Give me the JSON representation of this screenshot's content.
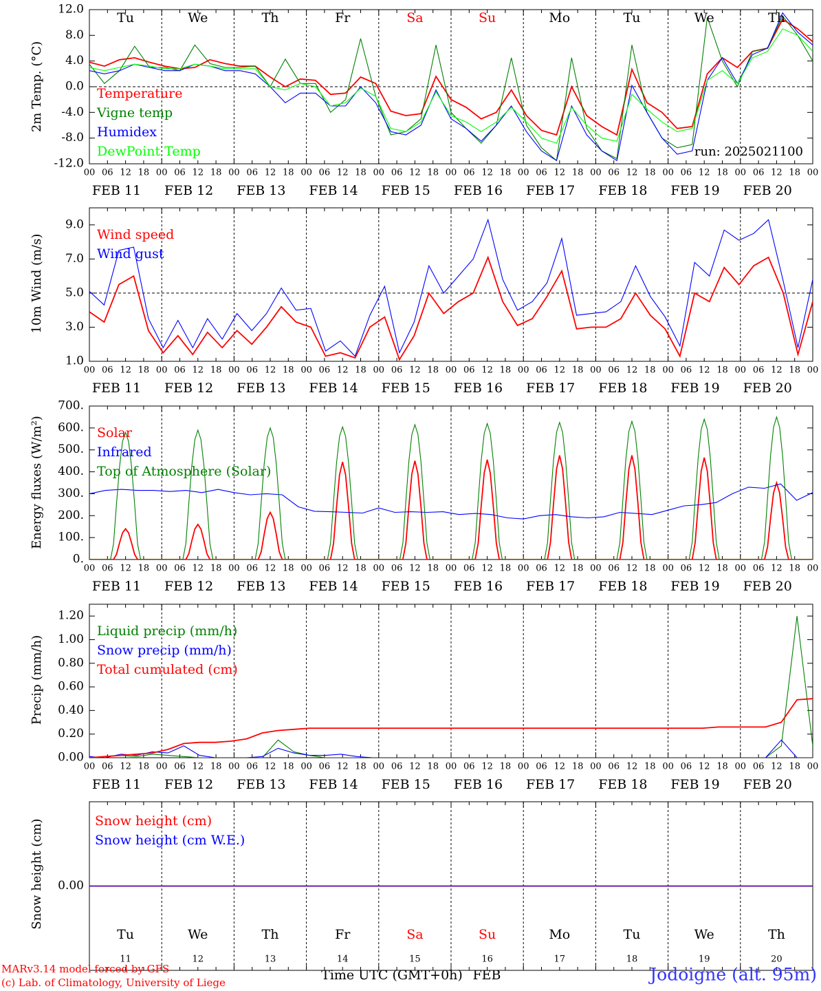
{
  "colors": {
    "red": "#ff0000",
    "green": "#008000",
    "blue": "#0000ff",
    "lightgreen": "#00ff00",
    "axis": "#000000",
    "run": "#000000",
    "site": "#3333ff"
  },
  "days_top": [
    "Tu",
    "We",
    "Th",
    "Fr",
    "Sa",
    "Su",
    "Mo",
    "Tu",
    "We",
    "Th"
  ],
  "day_colors": [
    "black",
    "black",
    "black",
    "black",
    "red",
    "red",
    "black",
    "black",
    "black",
    "black"
  ],
  "dates": [
    "FEB 11",
    "FEB 12",
    "FEB 13",
    "FEB 14",
    "FEB 15",
    "FEB 16",
    "FEB 17",
    "FEB 18",
    "FEB 19",
    "FEB 20"
  ],
  "hour_ticks": [
    "00",
    "06",
    "12",
    "18"
  ],
  "hour_end": "00",
  "bottom_day_nums": [
    "11",
    "12",
    "13",
    "14",
    "15",
    "16",
    "17",
    "18",
    "19",
    "20"
  ],
  "run_label": "run: 2025021100",
  "footer": {
    "line1": "MARv3.14 model forced by GFS",
    "line2": "(c) Lab. of Climatology, University of Liege",
    "xlabel": "Time UTC (GMT+0h)",
    "month": "FEB",
    "site": "Jodoigne (alt. 95m)"
  },
  "chart_data": [
    {
      "type": "line",
      "ylabel": "2m Temp. (°C)",
      "ylim": [
        -12,
        12
      ],
      "yticks": [
        "12.0",
        "8.0",
        "4.0",
        "0.0",
        "-4.0",
        "-8.0",
        "-12.0"
      ],
      "ref_line": 0,
      "series": [
        {
          "name": "Temperature",
          "color": "red",
          "x_hours_step": 6,
          "values": [
            3.8,
            3.2,
            4.2,
            4.5,
            3.8,
            3.2,
            2.8,
            3.0,
            4.2,
            3.6,
            3.2,
            3.2,
            1.5,
            0,
            1.2,
            1.0,
            -1.2,
            -1.0,
            1.5,
            0.5,
            -3.8,
            -4.5,
            -4.2,
            1.6,
            -2.0,
            -3.2,
            -5.0,
            -4.0,
            -0.5,
            -4.5,
            -6.8,
            -7.5,
            0.0,
            -4.5,
            -6.2,
            -7.5,
            2.7,
            -2.5,
            -4.0,
            -6.5,
            -6.2,
            2.0,
            4.5,
            3.0,
            5.5,
            6.0,
            10.5,
            9.0,
            7.0
          ]
        },
        {
          "name": "Vigne temp",
          "color": "green",
          "x_hours_step": 6,
          "values": [
            3.5,
            0.5,
            2.5,
            6.3,
            3.0,
            3.0,
            2.5,
            6.5,
            3.6,
            3.0,
            3.0,
            3.2,
            0,
            4.3,
            0.5,
            0.5,
            -4.0,
            -2.0,
            7.5,
            -1.5,
            -7.5,
            -7.0,
            -5.0,
            6.5,
            -4.0,
            -6.5,
            -8.8,
            -6.0,
            4.5,
            -6.0,
            -9.5,
            -11.5,
            4.5,
            -6.5,
            -10.0,
            -11.2,
            6.5,
            -4.0,
            -8.0,
            -9.5,
            -9.0,
            10.8,
            4.0,
            0,
            5.5,
            6.0,
            11.0,
            8.0,
            4.0
          ]
        },
        {
          "name": "Humidex",
          "color": "blue",
          "x_hours_step": 6,
          "values": [
            2.5,
            2.0,
            2.5,
            3.5,
            3.0,
            2.5,
            2.5,
            3.5,
            3.2,
            2.5,
            2.5,
            2.0,
            0,
            -2.5,
            -1.0,
            -1.0,
            -3.0,
            -3.0,
            0,
            -2.5,
            -7.0,
            -7.5,
            -6.0,
            -0.5,
            -5.0,
            -6.5,
            -8.5,
            -6.0,
            -3.0,
            -7.0,
            -10.0,
            -11.5,
            -3.0,
            -7.5,
            -10.0,
            -11.5,
            0.2,
            -4.0,
            -8.0,
            -10.5,
            -10.0,
            1.0,
            4.5,
            0.5,
            5.0,
            6.0,
            11.5,
            8.5,
            6.5
          ]
        },
        {
          "name": "DewPoint Temp",
          "color": "lightgreen",
          "x_hours_step": 6,
          "values": [
            3.0,
            2.5,
            3.0,
            3.5,
            3.2,
            2.8,
            2.8,
            3.5,
            3.2,
            2.8,
            2.8,
            2.8,
            0,
            -0.5,
            0.5,
            0.0,
            -3.0,
            -2.5,
            -0.2,
            -1.5,
            -6.5,
            -7.0,
            -5.5,
            -0.8,
            -4.5,
            -5.5,
            -7.0,
            -5.5,
            -3.2,
            -5.5,
            -8.0,
            -8.8,
            -3.2,
            -6.0,
            -8.0,
            -8.5,
            -1.2,
            -3.5,
            -5.5,
            -7.0,
            -6.5,
            1.0,
            2.5,
            0.5,
            4.5,
            5.5,
            9.0,
            8.0,
            5.5
          ]
        }
      ]
    },
    {
      "type": "line",
      "ylabel": "10m Wind (m/s)",
      "ylim": [
        1,
        10
      ],
      "yticks": [
        "9.0",
        "7.0",
        "5.0",
        "3.0",
        "1.0"
      ],
      "ref_line": 5,
      "series": [
        {
          "name": "Wind speed",
          "color": "red",
          "x_hours_step": 6,
          "values": [
            3.9,
            3.3,
            5.5,
            6.0,
            2.8,
            1.5,
            2.5,
            1.4,
            2.7,
            1.8,
            2.8,
            2.0,
            3.0,
            4.2,
            3.3,
            3.0,
            1.3,
            1.5,
            1.2,
            3.0,
            3.6,
            1.1,
            2.5,
            5.0,
            3.8,
            4.5,
            5.0,
            7.1,
            4.5,
            3.1,
            3.5,
            4.8,
            6.3,
            2.9,
            3.0,
            3.0,
            3.5,
            5.0,
            3.7,
            2.9,
            1.3,
            5.0,
            4.5,
            6.5,
            5.5,
            6.6,
            7.1,
            5.0,
            1.4,
            4.5
          ]
        },
        {
          "name": "Wind gust",
          "color": "blue",
          "x_hours_step": 6,
          "values": [
            5.1,
            4.3,
            7.5,
            7.7,
            3.5,
            1.8,
            3.4,
            1.8,
            3.5,
            2.3,
            3.8,
            2.8,
            3.8,
            5.3,
            4.0,
            4.1,
            1.6,
            2.2,
            1.3,
            3.7,
            5.4,
            1.5,
            3.3,
            6.6,
            5.0,
            6.0,
            7.0,
            9.3,
            5.8,
            4.0,
            4.5,
            5.6,
            8.2,
            3.7,
            3.8,
            3.9,
            4.5,
            6.6,
            4.8,
            3.6,
            1.9,
            6.8,
            6.0,
            8.7,
            8.1,
            8.5,
            9.3,
            5.7,
            1.8,
            5.8
          ]
        }
      ]
    },
    {
      "type": "line",
      "ylabel": "Energy fluxes (W/m²)",
      "ylim": [
        0,
        700
      ],
      "yticks": [
        "700.",
        "600.",
        "500.",
        "400.",
        "300.",
        "200.",
        "100.",
        "0."
      ],
      "series": [
        {
          "name": "Solar",
          "color": "red",
          "peaks": [
            140,
            160,
            215,
            445,
            450,
            455,
            475,
            475,
            465,
            350
          ]
        },
        {
          "name": "Infrared",
          "color": "blue",
          "x_hours_step": 6,
          "values": [
            300,
            315,
            320,
            315,
            315,
            310,
            315,
            305,
            320,
            305,
            295,
            300,
            295,
            240,
            220,
            218,
            215,
            212,
            235,
            215,
            218,
            215,
            218,
            205,
            210,
            205,
            190,
            185,
            200,
            205,
            195,
            190,
            195,
            215,
            210,
            205,
            225,
            245,
            250,
            260,
            300,
            330,
            325,
            345,
            270,
            305
          ]
        },
        {
          "name": "Top of Atmosphere (Solar)",
          "color": "green",
          "peaks": [
            580,
            590,
            600,
            605,
            615,
            620,
            625,
            630,
            640,
            650
          ]
        }
      ]
    },
    {
      "type": "line",
      "ylabel": "Precip (mm/h)",
      "ylim": [
        0,
        1.3
      ],
      "yticks": [
        "1.20",
        "1.00",
        "0.80",
        "0.60",
        "0.40",
        "0.20",
        "0.00"
      ],
      "series": [
        {
          "name": "Liquid precip (mm/h)",
          "color": "green",
          "x_hours_step": 6,
          "values": [
            0,
            0.01,
            0.02,
            0.01,
            0.03,
            0.02,
            0.01,
            0.0,
            0.0,
            0.0,
            0.0,
            0.0,
            0.15,
            0.05,
            0.02,
            0.0,
            0.0,
            0.0,
            0.0,
            0.0,
            0,
            0,
            0,
            0,
            0,
            0,
            0,
            0,
            0,
            0,
            0,
            0,
            0,
            0,
            0,
            0,
            0,
            0,
            0,
            0,
            0,
            0,
            0,
            0,
            0.1,
            1.2,
            0.1
          ]
        },
        {
          "name": "Snow precip (mm/h)",
          "color": "blue",
          "x_hours_step": 6,
          "values": [
            0.01,
            0.0,
            0.03,
            0.02,
            0.05,
            0.04,
            0.1,
            0.02,
            0.0,
            0.0,
            0.0,
            0.01,
            0.08,
            0.04,
            0.02,
            0.02,
            0.03,
            0.01,
            0,
            0,
            0,
            0,
            0,
            0,
            0,
            0,
            0,
            0,
            0,
            0,
            0,
            0,
            0,
            0,
            0,
            0,
            0,
            0,
            0,
            0,
            0,
            0,
            0,
            0,
            0.15,
            0.0,
            0
          ]
        },
        {
          "name": "Total cumulated (cm)",
          "color": "red",
          "x_hours_step": 6,
          "values": [
            0.0,
            0.01,
            0.02,
            0.03,
            0.04,
            0.07,
            0.12,
            0.13,
            0.13,
            0.14,
            0.16,
            0.21,
            0.23,
            0.24,
            0.25,
            0.25,
            0.25,
            0.25,
            0.25,
            0.25,
            0.25,
            0.25,
            0.25,
            0.25,
            0.25,
            0.25,
            0.25,
            0.25,
            0.25,
            0.25,
            0.25,
            0.25,
            0.25,
            0.25,
            0.25,
            0.25,
            0.25,
            0.25,
            0.25,
            0.25,
            0.26,
            0.26,
            0.26,
            0.26,
            0.3,
            0.49,
            0.5
          ]
        }
      ]
    },
    {
      "type": "line",
      "ylabel": "Snow height (cm)",
      "ylim": [
        -1,
        1
      ],
      "yticks": [
        "0.00"
      ],
      "series": [
        {
          "name": "Snow height (cm)",
          "color": "red",
          "x_hours_step": 240,
          "values": [
            0,
            0
          ]
        },
        {
          "name": "Snow height (cm W.E.)",
          "color": "blue",
          "x_hours_step": 240,
          "values": [
            0,
            0
          ]
        }
      ]
    }
  ]
}
